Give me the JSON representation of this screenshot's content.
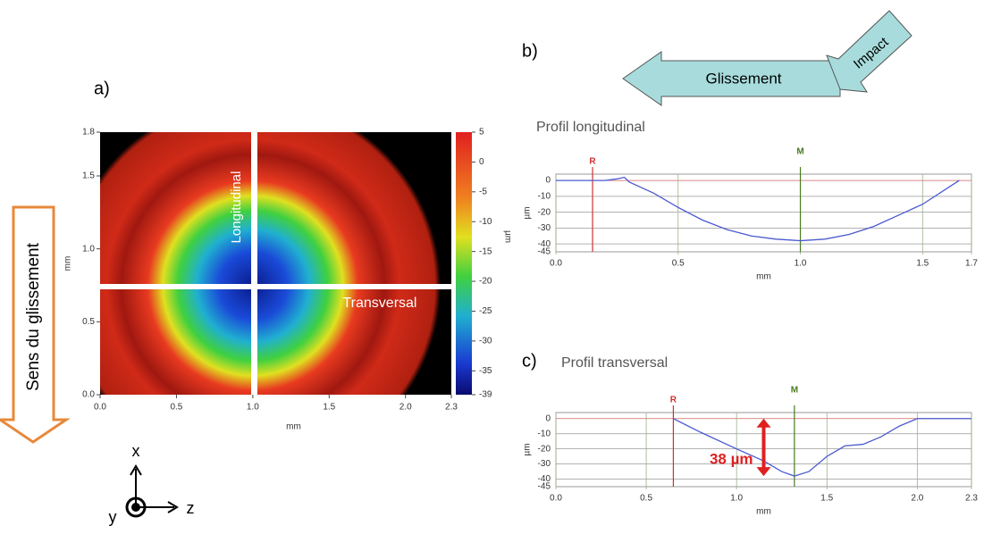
{
  "labels": {
    "a": "a)",
    "b": "b)",
    "c": "c)"
  },
  "arrows": {
    "glissement": "Glissement",
    "impact": "Impact",
    "sens": "Sens du glissement"
  },
  "triad": {
    "x": "x",
    "y": "y",
    "z": "z"
  },
  "chart_data": [
    {
      "type": "heatmap",
      "x_label": "mm",
      "y_label": "mm",
      "xlim": [
        0,
        2.3
      ],
      "ylim": [
        0,
        1.8
      ],
      "xticks": [
        {
          "value": 0,
          "label": "0.0"
        },
        0.5,
        {
          "value": 1,
          "label": "1.0"
        },
        1.5,
        {
          "value": 2,
          "label": "2.0"
        },
        2.3
      ],
      "yticks": [
        {
          "value": 0,
          "label": "0.0"
        },
        0.5,
        {
          "value": 1,
          "label": "1.0"
        },
        1.5,
        1.8
      ],
      "colorbar": {
        "label": "µm",
        "clim": [
          -39,
          5
        ],
        "ticks": [
          5,
          0,
          -5,
          -10,
          -15,
          -20,
          -25,
          -30,
          -35,
          -39
        ]
      },
      "annotations": [
        "Longitudinal",
        "Transversal"
      ]
    },
    {
      "type": "line",
      "title": "Profil longitudinal",
      "x_label": "mm",
      "y_label": "µm",
      "xlim": [
        0,
        1.7
      ],
      "ylim": [
        -45,
        4
      ],
      "xticks": [
        {
          "value": 0,
          "label": "0.0"
        },
        0.5,
        {
          "value": 1,
          "label": "1.0"
        },
        1.5,
        1.7
      ],
      "yticks": [
        0,
        -10,
        -20,
        -30,
        -40,
        -45
      ],
      "markers": [
        {
          "label": "R",
          "x": 0.15,
          "color": "#d03030"
        },
        {
          "label": "M",
          "x": 1.0,
          "color": "#4a7a20"
        }
      ],
      "series": [
        {
          "color": "#4a5acf",
          "x": [
            0,
            0.1,
            0.2,
            0.25,
            0.28,
            0.3,
            0.4,
            0.5,
            0.6,
            0.7,
            0.8,
            0.9,
            1.0,
            1.1,
            1.2,
            1.3,
            1.4,
            1.5,
            1.6,
            1.65
          ],
          "values": [
            0,
            0,
            0,
            1,
            2,
            -1,
            -8,
            -17,
            -25,
            -31,
            -35,
            -37,
            -38,
            -37,
            -34,
            -29,
            -22,
            -15,
            -5,
            0
          ]
        }
      ]
    },
    {
      "type": "line",
      "title": "Profil transversal",
      "x_label": "mm",
      "y_label": "µm",
      "xlim": [
        0,
        2.3
      ],
      "ylim": [
        -45,
        4
      ],
      "xticks": [
        {
          "value": 0,
          "label": "0.0"
        },
        0.5,
        {
          "value": 1,
          "label": "1.0"
        },
        1.5,
        {
          "value": 2,
          "label": "2.0"
        },
        2.3
      ],
      "yticks": [
        0,
        -10,
        -20,
        -30,
        -40,
        -45
      ],
      "markers": [
        {
          "label": "R",
          "x": 0.65,
          "color": "#d03030"
        },
        {
          "label": "M",
          "x": 1.32,
          "color": "#4a7a20"
        }
      ],
      "series": [
        {
          "color": "#4a5acf",
          "x": [
            0.65,
            0.8,
            1.0,
            1.15,
            1.25,
            1.32,
            1.4,
            1.5,
            1.6,
            1.7,
            1.8,
            1.9,
            2.0,
            2.3
          ],
          "values": [
            0,
            -9,
            -20,
            -28,
            -35,
            -38,
            -35,
            -25,
            -18,
            -17,
            -12,
            -5,
            0,
            0
          ]
        }
      ],
      "depth": {
        "value": 38,
        "label": "38 µm",
        "x": 1.15
      }
    }
  ]
}
